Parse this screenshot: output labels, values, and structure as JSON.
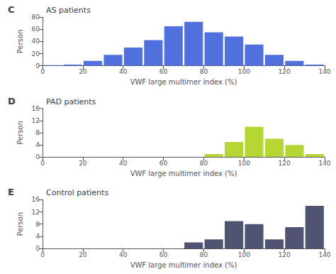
{
  "chart_data": [
    {
      "type": "histogram",
      "title": "AS patients",
      "annotations": [
        "C"
      ],
      "xlabel": "VWF large multimer index (%)",
      "ylabel": "Person",
      "bins": [
        0,
        10,
        20,
        30,
        40,
        50,
        60,
        70,
        80,
        90,
        100,
        110,
        120,
        130,
        140
      ],
      "values": [
        1,
        2,
        8,
        18,
        30,
        42,
        65,
        72,
        55,
        48,
        35,
        18,
        8,
        2
      ],
      "xlim": [
        0,
        140
      ],
      "xticks": [
        0,
        20,
        40,
        60,
        80,
        100,
        120,
        140
      ],
      "ylim": [
        0,
        80
      ],
      "yticks": [
        0,
        20,
        40,
        60,
        80
      ],
      "grid": false
    },
    {
      "type": "histogram",
      "title": "PAD patients",
      "annotations": [
        "D"
      ],
      "xlabel": "VWF large multimer index (%)",
      "ylabel": "Person",
      "bins": [
        0,
        10,
        20,
        30,
        40,
        50,
        60,
        70,
        80,
        90,
        100,
        110,
        120,
        130,
        140
      ],
      "values": [
        0,
        0,
        0,
        0,
        0,
        0,
        0,
        0,
        1,
        5,
        10,
        6,
        4,
        1
      ],
      "xlim": [
        0,
        140
      ],
      "xticks": [
        0,
        20,
        40,
        60,
        80,
        100,
        120,
        140
      ],
      "ylim": [
        0,
        16
      ],
      "yticks": [
        0,
        4,
        8,
        12,
        16
      ],
      "grid": false
    },
    {
      "type": "histogram",
      "title": "Control patients",
      "annotations": [
        "E"
      ],
      "xlabel": "VWF large multimer index (%)",
      "ylabel": "Person",
      "bins": [
        0,
        10,
        20,
        30,
        40,
        50,
        60,
        70,
        80,
        90,
        100,
        110,
        120,
        130,
        140
      ],
      "values": [
        0,
        0,
        0,
        0,
        0,
        0,
        0,
        2,
        3,
        9,
        8,
        3,
        7,
        14
      ],
      "xlim": [
        0,
        140
      ],
      "xticks": [
        0,
        20,
        40,
        60,
        80,
        100,
        120,
        140
      ],
      "ylim": [
        0,
        16
      ],
      "yticks": [
        0,
        4,
        8,
        12,
        16
      ],
      "grid": false
    }
  ]
}
